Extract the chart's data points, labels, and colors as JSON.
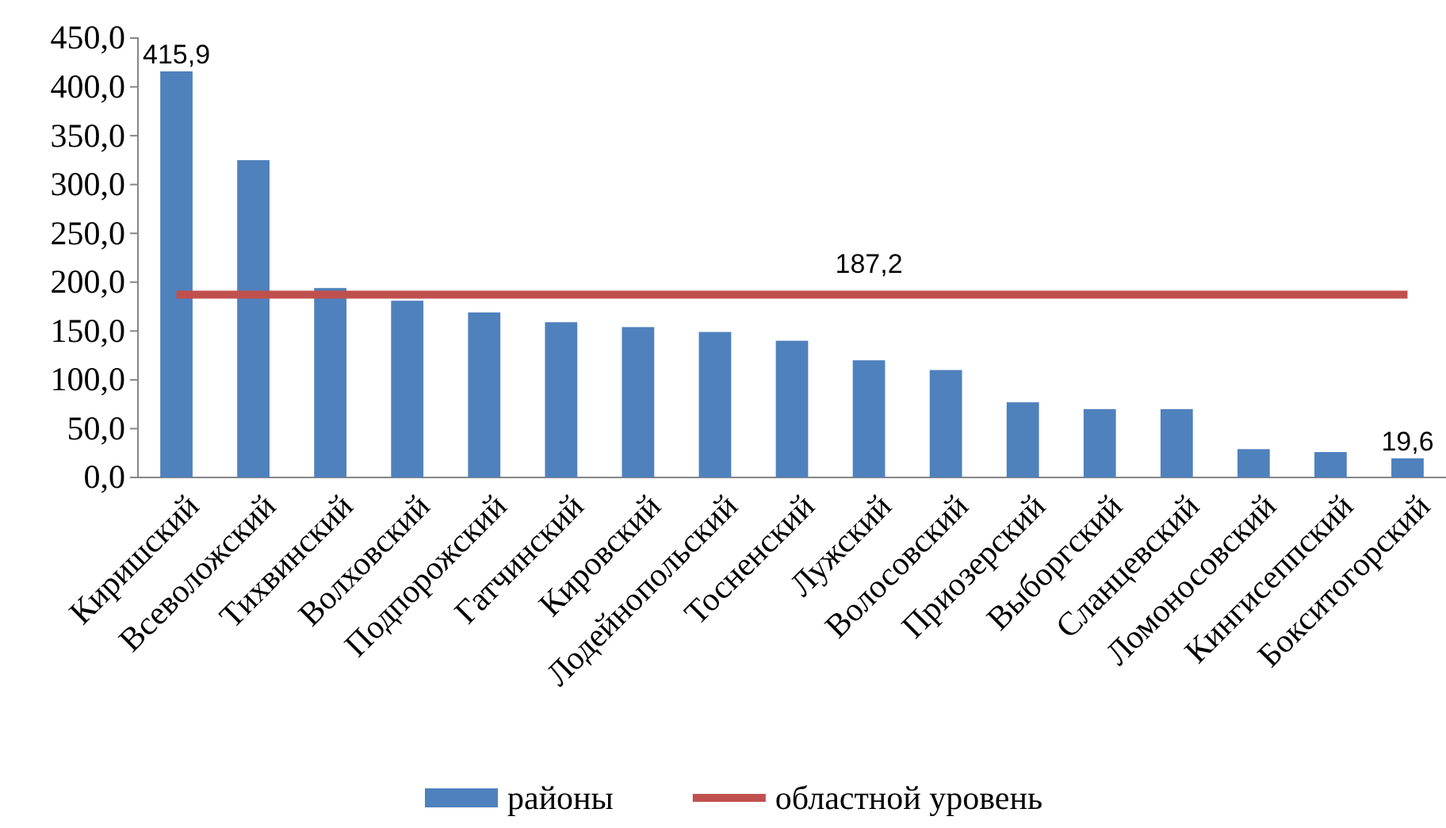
{
  "chart_data": {
    "type": "bar",
    "categories": [
      "Киришский",
      "Всеволожский",
      "Тихвинский",
      "Волховский",
      "Подпорожский",
      "Гатчинский",
      "Кировский",
      "Лодейнопольский",
      "Тосненский",
      "Лужский",
      "Волосовский",
      "Приозерский",
      "Выборгский",
      "Сланцевский",
      "Ломоносовский",
      "Кингисеппский",
      "Бокситогорский"
    ],
    "series": [
      {
        "name": "районы",
        "color": "#4f81bd",
        "values": [
          415.9,
          325,
          194,
          181,
          169,
          159,
          154,
          149,
          140,
          120,
          110,
          77,
          70,
          70,
          29,
          26,
          19.6
        ],
        "value_labels": [
          "415,9",
          null,
          null,
          null,
          null,
          null,
          null,
          null,
          null,
          null,
          null,
          null,
          null,
          null,
          null,
          null,
          "19,6"
        ]
      },
      {
        "name": "областной уровень",
        "type": "line",
        "color": "#c0504d",
        "values": [
          187.2,
          187.2,
          187.2,
          187.2,
          187.2,
          187.2,
          187.2,
          187.2,
          187.2,
          187.2,
          187.2,
          187.2,
          187.2,
          187.2,
          187.2,
          187.2,
          187.2
        ],
        "value_labels": [
          null,
          null,
          null,
          null,
          null,
          null,
          null,
          null,
          null,
          "187,2",
          null,
          null,
          null,
          null,
          null,
          null,
          null
        ]
      }
    ],
    "ylim": [
      0,
      450
    ],
    "yticks": [
      {
        "value": 0,
        "label": "0,0"
      },
      {
        "value": 50,
        "label": "50,0"
      },
      {
        "value": 100,
        "label": "100,0"
      },
      {
        "value": 150,
        "label": "150,0"
      },
      {
        "value": 200,
        "label": "200,0"
      },
      {
        "value": 250,
        "label": "250,0"
      },
      {
        "value": 300,
        "label": "300,0"
      },
      {
        "value": 350,
        "label": "350,0"
      },
      {
        "value": 400,
        "label": "400,0"
      },
      {
        "value": 450,
        "label": "450,0"
      }
    ],
    "grid": false,
    "legend": "bottom",
    "marker": "none",
    "line_style": "solid"
  }
}
